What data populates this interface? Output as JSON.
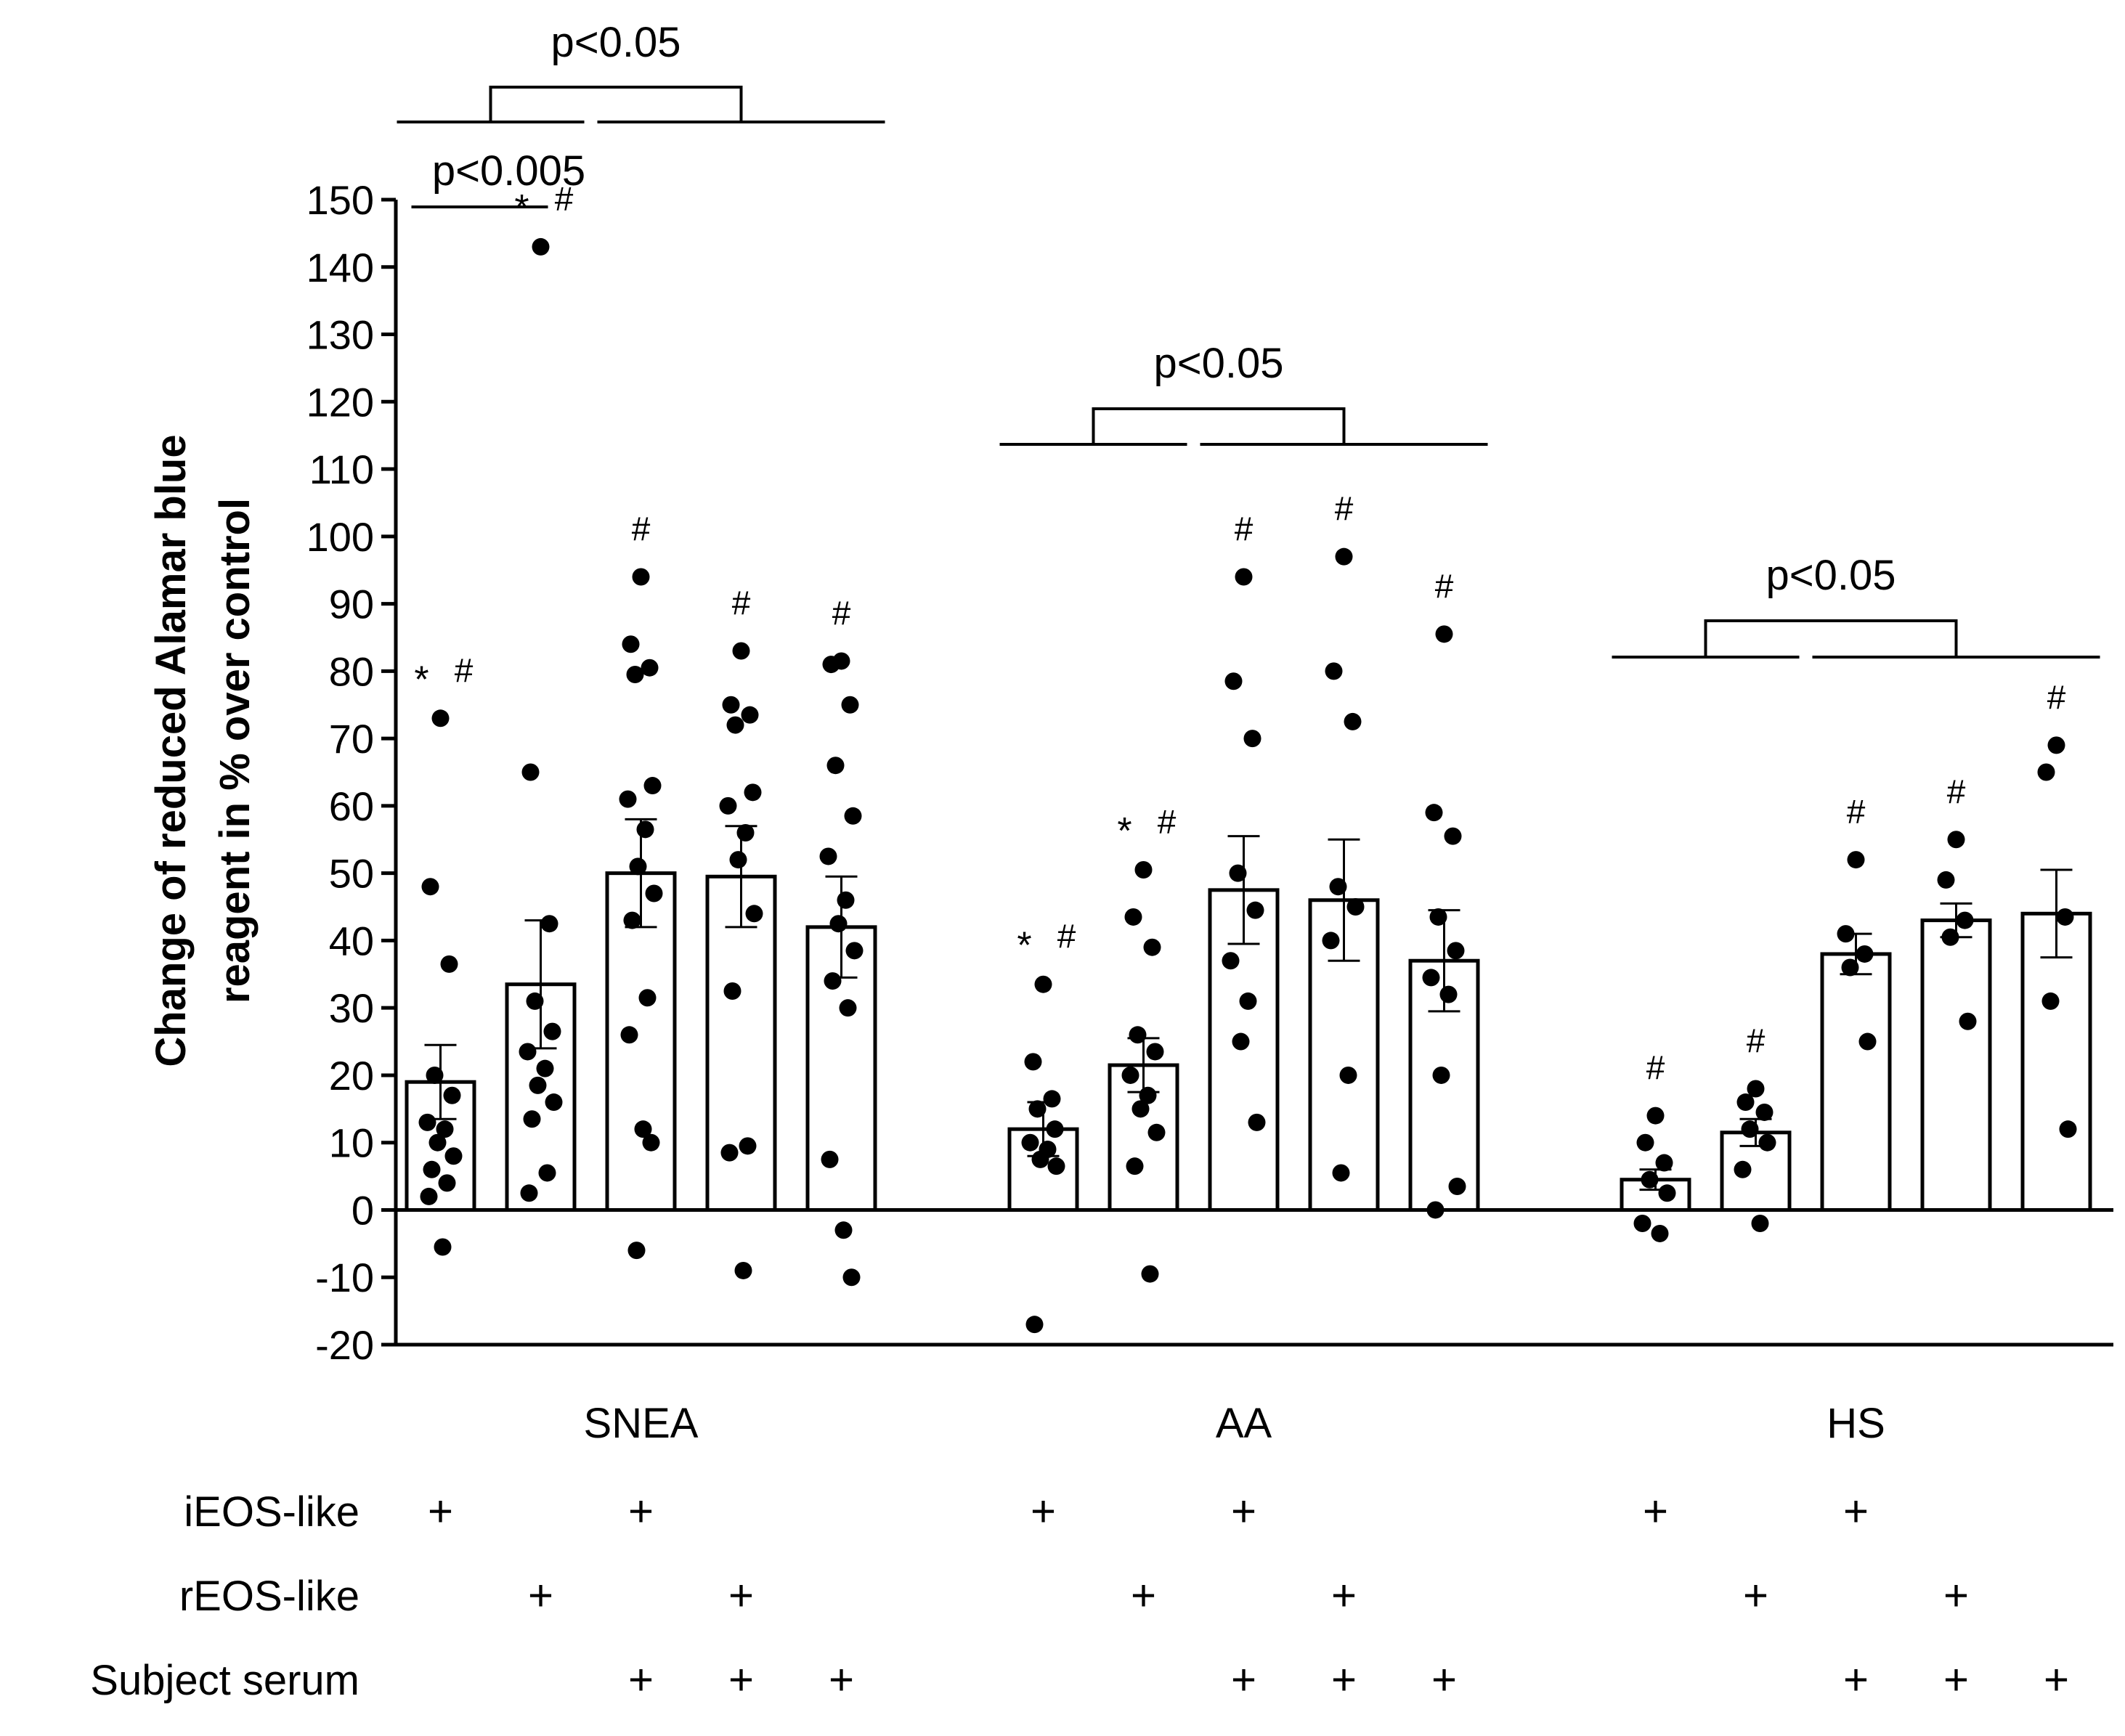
{
  "chart_data": {
    "type": "bar",
    "ylabel_line1": "Change of reduced Alamar blue",
    "ylabel_line2": "reagent in % over control",
    "ylim": [
      -20,
      150
    ],
    "yticks": [
      -20,
      -10,
      0,
      10,
      20,
      30,
      40,
      50,
      60,
      70,
      80,
      90,
      100,
      110,
      120,
      130,
      140,
      150
    ],
    "colors": {
      "bar_fill": "#ffffff",
      "stroke": "#000000",
      "dot": "#000000"
    },
    "groups": [
      {
        "name": "SNEA",
        "bars": [
          {
            "mean": 19,
            "sem": 5.5,
            "annotation": "* #",
            "points": [
              73,
              48,
              36.5,
              20,
              17,
              13,
              12,
              10,
              8,
              6,
              4,
              2,
              -5.5
            ]
          },
          {
            "mean": 33.5,
            "sem": 9.5,
            "annotation": "* #",
            "points": [
              143,
              65,
              42.5,
              31,
              26.5,
              23.5,
              21,
              18.5,
              16,
              13.5,
              5.5,
              2.5
            ]
          },
          {
            "mean": 50,
            "sem": 8,
            "annotation": "#",
            "points": [
              94,
              84,
              80.5,
              79.5,
              63,
              61,
              56.5,
              51,
              47,
              43,
              31.5,
              26,
              12,
              10,
              -6
            ]
          },
          {
            "mean": 49.5,
            "sem": 7.5,
            "annotation": "#",
            "points": [
              83,
              75,
              73.5,
              72,
              62,
              60,
              56,
              52,
              44,
              32.5,
              9.5,
              8.5,
              -9
            ]
          },
          {
            "mean": 42,
            "sem": 7.5,
            "annotation": "#",
            "points": [
              81.5,
              81,
              75,
              66,
              58.5,
              52.5,
              46,
              42.5,
              38.5,
              34,
              30,
              7.5,
              -3,
              -10
            ]
          }
        ]
      },
      {
        "name": "AA",
        "bars": [
          {
            "mean": 12,
            "sem": 4,
            "annotation": "* #",
            "points": [
              33.5,
              22,
              16.5,
              15,
              12,
              10,
              9,
              7.5,
              6.5,
              -17
            ]
          },
          {
            "mean": 21.5,
            "sem": 4,
            "annotation": "* #",
            "points": [
              50.5,
              43.5,
              39,
              26,
              23.5,
              20,
              17,
              15,
              11.5,
              6.5,
              -9.5
            ]
          },
          {
            "mean": 47.5,
            "sem": 8,
            "annotation": "#",
            "points": [
              94,
              78.5,
              70,
              50,
              44.5,
              37,
              31,
              25,
              13
            ]
          },
          {
            "mean": 46,
            "sem": 9,
            "annotation": "#",
            "points": [
              97,
              80,
              72.5,
              48,
              45,
              40,
              20,
              5.5
            ]
          },
          {
            "mean": 37,
            "sem": 7.5,
            "annotation": "#",
            "points": [
              85.5,
              59,
              55.5,
              43.5,
              38.5,
              34.5,
              32,
              20,
              3.5,
              0
            ]
          }
        ]
      },
      {
        "name": "HS",
        "bars": [
          {
            "mean": 4.5,
            "sem": 1.5,
            "annotation": "#",
            "points": [
              14,
              10,
              7,
              4.5,
              2.5,
              -2,
              -3.5
            ]
          },
          {
            "mean": 11.5,
            "sem": 2,
            "annotation": "#",
            "points": [
              18,
              16,
              14.5,
              12,
              10,
              6,
              -2
            ]
          },
          {
            "mean": 38,
            "sem": 3,
            "annotation": "#",
            "points": [
              52,
              41,
              38,
              36,
              25
            ]
          },
          {
            "mean": 43,
            "sem": 2.5,
            "annotation": "#",
            "points": [
              55,
              49,
              43,
              40.5,
              28
            ]
          },
          {
            "mean": 44,
            "sem": 6.5,
            "annotation": "#",
            "points": [
              69,
              65,
              43.5,
              31,
              12
            ]
          }
        ]
      }
    ],
    "conditions": {
      "rows": [
        {
          "label": "iEOS-like",
          "marks": [
            true,
            false,
            true,
            false,
            false
          ]
        },
        {
          "label": "rEOS-like",
          "marks": [
            false,
            true,
            false,
            true,
            false
          ]
        },
        {
          "label": "Subject serum",
          "marks": [
            false,
            false,
            true,
            true,
            true
          ]
        }
      ],
      "mark_symbol": "+"
    },
    "significance": [
      {
        "label": "p<0.05",
        "kind": "group-bracket",
        "group": 0
      },
      {
        "label": "p<0.005",
        "kind": "pair-line",
        "group": 0,
        "from_bar": 0,
        "to_bar": 1
      },
      {
        "label": "p<0.05",
        "kind": "group-bracket",
        "group": 1
      },
      {
        "label": "p<0.05",
        "kind": "group-bracket",
        "group": 2
      }
    ]
  }
}
